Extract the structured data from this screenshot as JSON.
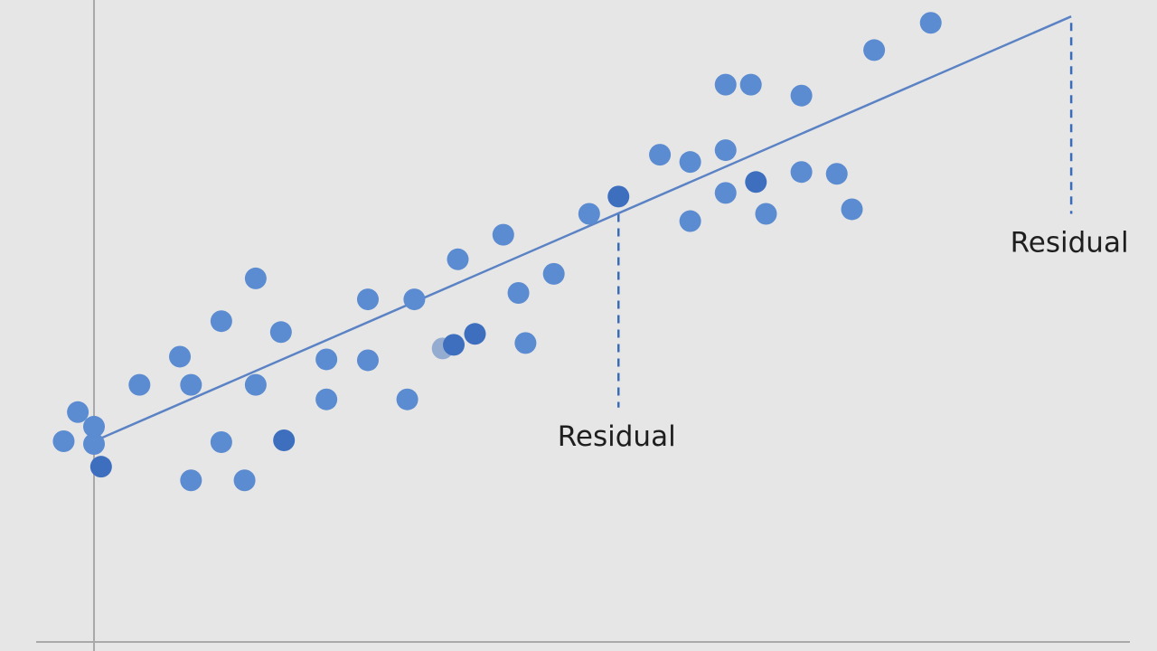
{
  "colors": {
    "background": "#e6e6e6",
    "axis": "#a9a9a9",
    "points": "#5b8bd0",
    "points_dark": "#3e6fbf",
    "points_light": "#94acd0",
    "regression_line": "#5a82c4",
    "residual_line": "#3b6cb8",
    "label": "#1e1e1e"
  },
  "chart_data": {
    "type": "scatter",
    "title": "",
    "xlabel": "",
    "ylabel": "",
    "grid": false,
    "xlim": [
      -0.5,
      11.0
    ],
    "ylim": [
      -2.3,
      4.5
    ],
    "points": [
      {
        "x": -0.3,
        "y": 0.0
      },
      {
        "x": -0.16,
        "y": 0.32
      },
      {
        "x": 0.0,
        "y": 0.16
      },
      {
        "x": 0.0,
        "y": -0.03
      },
      {
        "x": 0.07,
        "y": -0.28,
        "shade": "dark"
      },
      {
        "x": 0.45,
        "y": 0.62
      },
      {
        "x": 0.85,
        "y": 0.93
      },
      {
        "x": 0.96,
        "y": 0.62
      },
      {
        "x": 0.96,
        "y": -0.43
      },
      {
        "x": 1.26,
        "y": 1.32
      },
      {
        "x": 1.26,
        "y": -0.01
      },
      {
        "x": 1.49,
        "y": -0.43
      },
      {
        "x": 1.6,
        "y": 1.79
      },
      {
        "x": 1.6,
        "y": 0.62
      },
      {
        "x": 1.85,
        "y": 1.2
      },
      {
        "x": 1.88,
        "y": 0.01,
        "shade": "dark"
      },
      {
        "x": 2.3,
        "y": 0.9
      },
      {
        "x": 2.3,
        "y": 0.46
      },
      {
        "x": 2.71,
        "y": 1.56
      },
      {
        "x": 2.71,
        "y": 0.89
      },
      {
        "x": 3.1,
        "y": 0.46
      },
      {
        "x": 3.17,
        "y": 1.56
      },
      {
        "x": 3.45,
        "y": 1.02,
        "shade": "light"
      },
      {
        "x": 3.56,
        "y": 1.06,
        "shade": "dark"
      },
      {
        "x": 3.6,
        "y": 2.0
      },
      {
        "x": 3.77,
        "y": 1.18,
        "shade": "dark"
      },
      {
        "x": 4.05,
        "y": 2.27
      },
      {
        "x": 4.2,
        "y": 1.63
      },
      {
        "x": 4.27,
        "y": 1.08
      },
      {
        "x": 4.55,
        "y": 1.84
      },
      {
        "x": 4.9,
        "y": 2.5
      },
      {
        "x": 5.19,
        "y": 2.69,
        "shade": "dark"
      },
      {
        "x": 5.6,
        "y": 3.15
      },
      {
        "x": 5.9,
        "y": 3.07
      },
      {
        "x": 5.9,
        "y": 2.42
      },
      {
        "x": 6.25,
        "y": 3.92
      },
      {
        "x": 6.25,
        "y": 3.2
      },
      {
        "x": 6.25,
        "y": 2.73
      },
      {
        "x": 6.5,
        "y": 3.92
      },
      {
        "x": 6.55,
        "y": 2.85,
        "shade": "dark"
      },
      {
        "x": 6.65,
        "y": 2.5
      },
      {
        "x": 7.0,
        "y": 3.8
      },
      {
        "x": 7.0,
        "y": 2.96
      },
      {
        "x": 7.35,
        "y": 2.94
      },
      {
        "x": 7.5,
        "y": 2.55
      },
      {
        "x": 7.72,
        "y": 4.3
      },
      {
        "x": 8.28,
        "y": 4.6
      }
    ],
    "regression_line": {
      "x": [
        0.0,
        9.67
      ],
      "y": [
        0.0,
        4.67
      ]
    },
    "annotations": [
      {
        "label": "Residual",
        "x": 5.19,
        "y_from": 2.5,
        "y_to": 0.37
      },
      {
        "label": "Residual",
        "x": 9.67,
        "y_from": 4.6,
        "y_to": 2.5
      }
    ]
  }
}
